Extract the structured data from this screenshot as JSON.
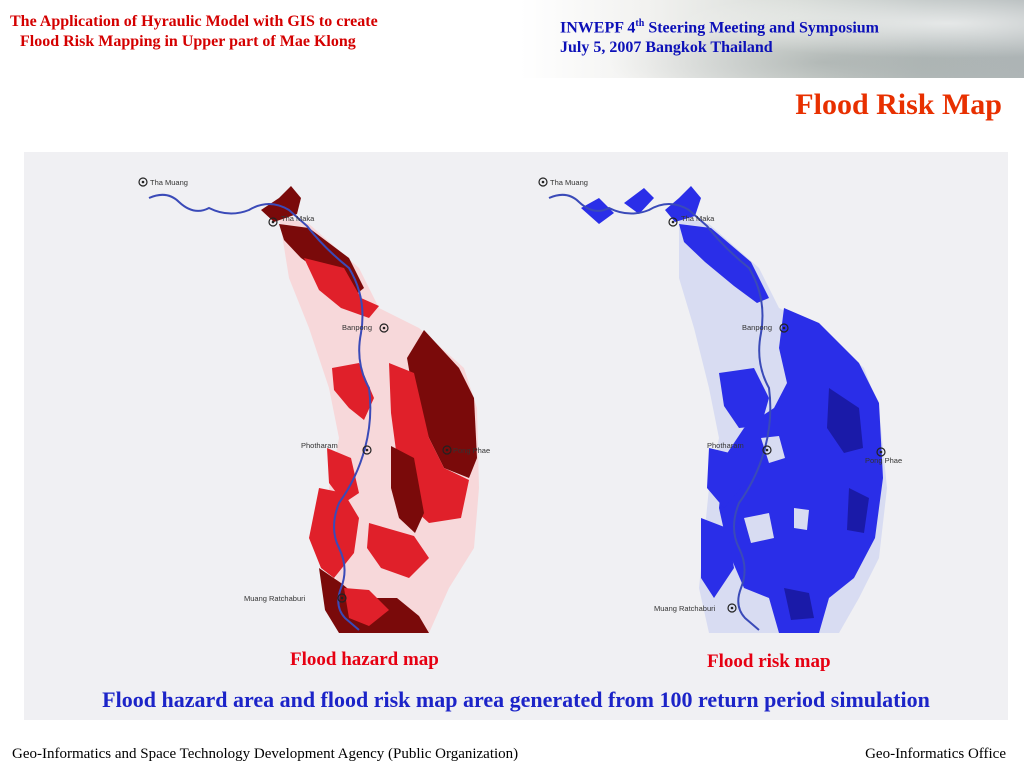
{
  "header": {
    "title_line1": "The Application of Hyraulic Model with GIS to create",
    "title_line2": "Flood Risk Mapping  in Upper part of Mae Klong",
    "event_prefix": "INWEPF  4",
    "event_sup": "th",
    "event_suffix": "  Steering Meeting and Symposium",
    "event_date": "July  5, 2007  Bangkok  Thailand"
  },
  "slide_title": "Flood Risk Map",
  "maps": {
    "hazard": {
      "label": "Flood hazard map",
      "places": {
        "a": "Tha Muang",
        "b": "Tha Maka",
        "c": "Banpong",
        "d": "Photharam",
        "e": "Pong Phae",
        "f": "Muang Ratchaburi"
      }
    },
    "risk": {
      "label": "Flood risk map",
      "places": {
        "a": "Tha Muang",
        "b": "Tha Maka",
        "c": "Banpong",
        "d": "Photharam",
        "e": "Pong Phae",
        "f": "Muang Ratchaburi"
      }
    }
  },
  "caption": "Flood hazard area and flood risk map area generated from 100 return period simulation",
  "footer": {
    "left": "Geo-Informatics and Space Technology Development Agency (Public Organization)",
    "right": "Geo-Informatics Office"
  },
  "colors": {
    "title_red": "#d40000",
    "event_blue": "#0c10b8",
    "hazard_dark": "#7a0a0a",
    "hazard_mid": "#e0202a",
    "hazard_light": "#f7d8da",
    "risk_blue": "#2a2ee8",
    "risk_dark": "#1a1aa8",
    "risk_light": "#d8dcf2",
    "river": "#3a4ab8"
  }
}
